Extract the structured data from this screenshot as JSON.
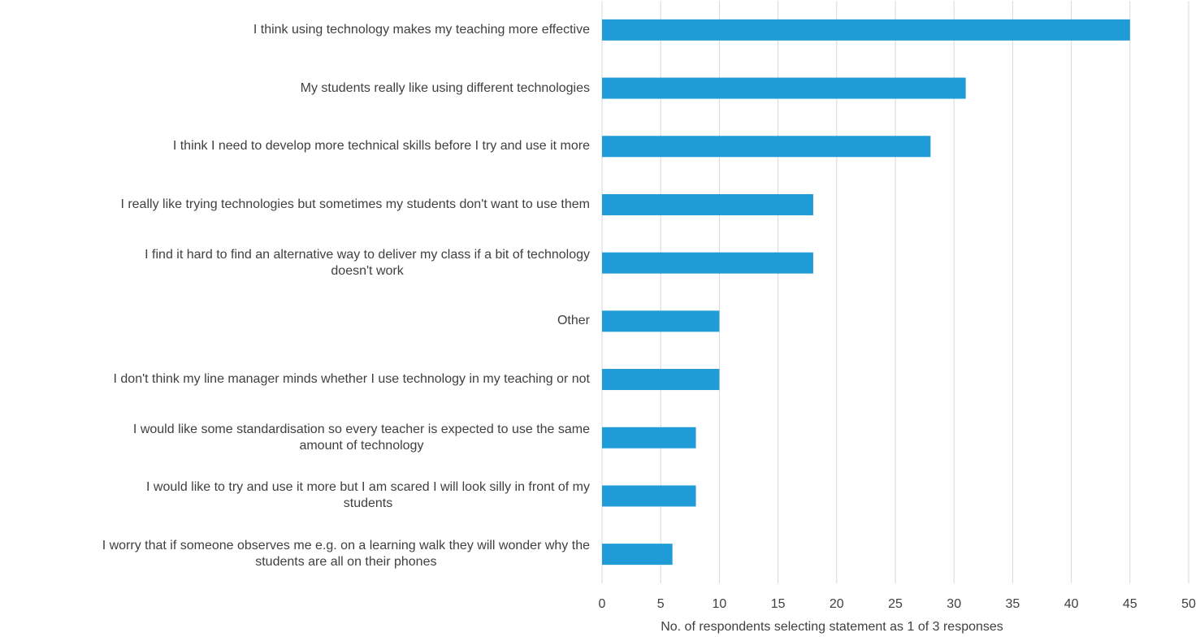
{
  "chart_data": {
    "type": "barh",
    "categories": [
      "I think using technology makes my teaching more effective",
      "My students really like using different technologies",
      "I think I need to develop more technical skills before I try and use it more",
      "I really like trying technologies but sometimes my students don't want to use them",
      "I find it hard to find an alternative way to deliver my class if a bit of technology\ndoesn't work",
      "Other",
      "I don't think my line manager minds whether I use technology in my teaching or not",
      "I would like some standardisation so every teacher is expected to use the same\namount of technology",
      "I would like to try and use it more but I am scared I will look silly in front of my\nstudents",
      "I worry that if someone observes me e.g. on a learning walk they will wonder why the\nstudents are all on their phones"
    ],
    "values": [
      45,
      31,
      28,
      18,
      18,
      10,
      10,
      8,
      8,
      6
    ],
    "color": "#1f9bd7",
    "xlabel": "No. of respondents  selecting statement as 1 of 3 responses",
    "xlim": [
      0,
      50
    ],
    "xticks": [
      0,
      5,
      10,
      15,
      20,
      25,
      30,
      35,
      40,
      45,
      50
    ],
    "grid": true
  }
}
